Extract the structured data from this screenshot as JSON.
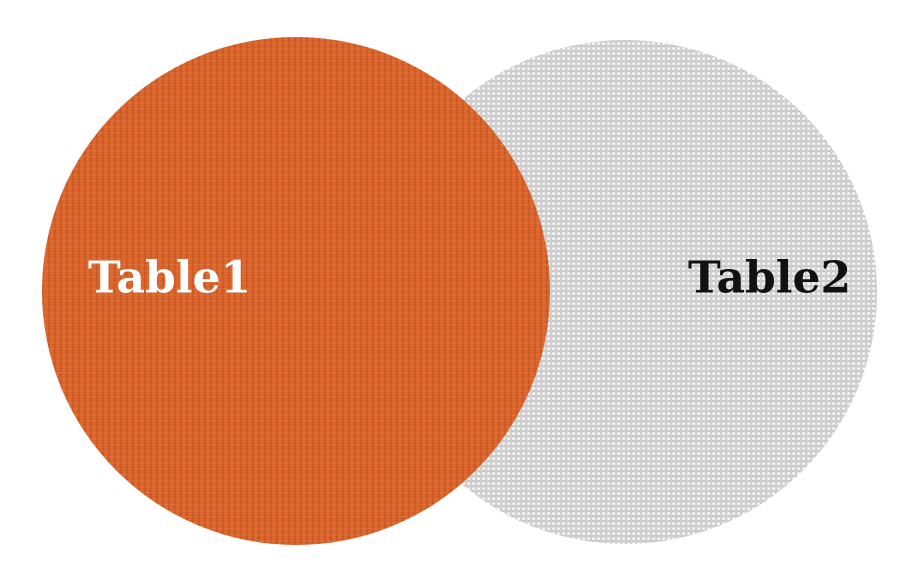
{
  "diagram": {
    "type": "venn",
    "sets": [
      {
        "label": "Table1",
        "fill": "#D9622B",
        "text_color": "#FFFFFF"
      },
      {
        "label": "Table2",
        "fill": "#D0D0D0",
        "text_color": "#111111"
      }
    ],
    "background": "#FFFFFF"
  }
}
